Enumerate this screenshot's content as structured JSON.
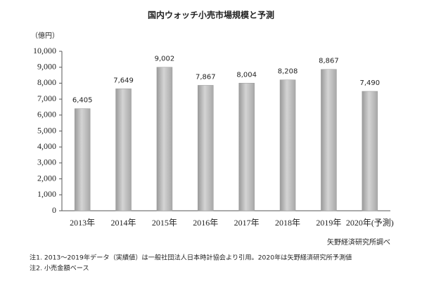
{
  "chart_data": {
    "type": "bar",
    "title": "国内ウォッチ小売市場規模と予測",
    "y_label": "（億円）",
    "categories": [
      "2013年",
      "2014年",
      "2015年",
      "2016年",
      "2017年",
      "2018年",
      "2019年",
      "2020年(予測)"
    ],
    "values": [
      6405,
      7649,
      9002,
      7867,
      8004,
      8208,
      8867,
      7490
    ],
    "value_labels": [
      "6,405",
      "7,649",
      "9,002",
      "7,867",
      "8,004",
      "8,208",
      "8,867",
      "7,490"
    ],
    "color": "#d4d4d4",
    "ylim": [
      0,
      10000
    ],
    "yticks": [
      0,
      {
        "value": 1000,
        "label": "1,000"
      },
      {
        "value": 2000,
        "label": "2,000"
      },
      {
        "value": 3000,
        "label": "3,000"
      },
      {
        "value": 4000,
        "label": "4,000"
      },
      {
        "value": 5000,
        "label": "5,000"
      },
      {
        "value": 6000,
        "label": "6,000"
      },
      {
        "value": 7000,
        "label": "7,000"
      },
      {
        "value": 8000,
        "label": "8,000"
      },
      {
        "value": 9000,
        "label": "9,000"
      },
      {
        "value": 10000,
        "label": "10,000"
      }
    ],
    "grid": false,
    "source": "矢野経済研究所調べ",
    "notes": [
      "注1. 2013～2019年データ（実績値）は一般社団法人日本時計協会より引用。2020年は矢野経済研究所予測値",
      "注2. 小売金額ベース"
    ]
  }
}
